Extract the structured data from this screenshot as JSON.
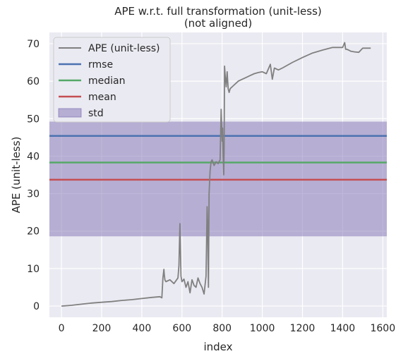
{
  "chart_data": {
    "type": "line",
    "title": "APE w.r.t. full transformation (unit-less)\n(not aligned)",
    "xlabel": "index",
    "ylabel": "APE (unit-less)",
    "xlim": [
      -60,
      1620
    ],
    "ylim": [
      -3,
      73
    ],
    "xticks": [
      0,
      200,
      400,
      600,
      800,
      1000,
      1200,
      1400,
      1600
    ],
    "yticks": [
      0,
      10,
      20,
      30,
      40,
      50,
      60,
      70
    ],
    "grid": true,
    "legend_position": "top-left",
    "stats": {
      "rmse": 45.4,
      "median": 38.3,
      "mean": 33.7,
      "std_band": [
        18.6,
        49.2
      ]
    },
    "series": [
      {
        "name": "APE (unit-less)",
        "color": "#808080",
        "x": [
          0,
          50,
          100,
          150,
          200,
          250,
          300,
          350,
          400,
          450,
          490,
          500,
          505,
          510,
          512,
          515,
          520,
          540,
          560,
          580,
          585,
          590,
          595,
          600,
          610,
          620,
          630,
          640,
          650,
          660,
          670,
          680,
          690,
          700,
          710,
          720,
          725,
          728,
          730,
          732,
          735,
          740,
          745,
          750,
          760,
          770,
          780,
          790,
          795,
          800,
          802,
          805,
          808,
          810,
          812,
          815,
          820,
          825,
          830,
          835,
          840,
          850,
          860,
          870,
          880,
          900,
          920,
          940,
          960,
          980,
          1000,
          1020,
          1040,
          1050,
          1060,
          1080,
          1100,
          1150,
          1200,
          1250,
          1300,
          1350,
          1400,
          1410,
          1415,
          1420,
          1430,
          1440,
          1460,
          1480,
          1500,
          1520,
          1540
        ],
        "y": [
          0,
          0.2,
          0.5,
          0.8,
          1.0,
          1.2,
          1.5,
          1.7,
          2.0,
          2.3,
          2.5,
          2.2,
          7.5,
          9.8,
          8.5,
          7.0,
          6.5,
          7.0,
          6.0,
          7.5,
          10.8,
          22.0,
          8.0,
          6.5,
          7.2,
          5.0,
          6.5,
          3.5,
          7.0,
          5.5,
          5.0,
          7.5,
          6.0,
          5.0,
          3.2,
          8.0,
          26.5,
          22.0,
          11.0,
          5.0,
          30.0,
          36.0,
          38.5,
          39.0,
          37.5,
          38.5,
          38.0,
          39.0,
          52.5,
          44.0,
          47.5,
          40.0,
          35.0,
          42.0,
          64.0,
          61.5,
          58.5,
          62.5,
          58.0,
          57.0,
          58.0,
          58.5,
          59.0,
          59.5,
          60.0,
          60.5,
          61.0,
          61.5,
          62.0,
          62.3,
          62.5,
          62.0,
          64.5,
          60.5,
          63.5,
          63.0,
          63.5,
          65.0,
          66.3,
          67.5,
          68.3,
          69.0,
          69.0,
          70.3,
          68.5,
          68.5,
          68.3,
          68.0,
          67.8,
          67.7,
          68.8,
          68.8,
          68.8
        ]
      },
      {
        "name": "rmse",
        "color": "#4c72b0"
      },
      {
        "name": "median",
        "color": "#55a868"
      },
      {
        "name": "mean",
        "color": "#c44e52"
      },
      {
        "name": "std",
        "color": "#8172b3"
      }
    ],
    "colors": {
      "plot_background": "#eaeaf2",
      "grid": "#ffffff",
      "std_fill": "#8172b3",
      "legend_background": "#eaeaf2"
    }
  }
}
